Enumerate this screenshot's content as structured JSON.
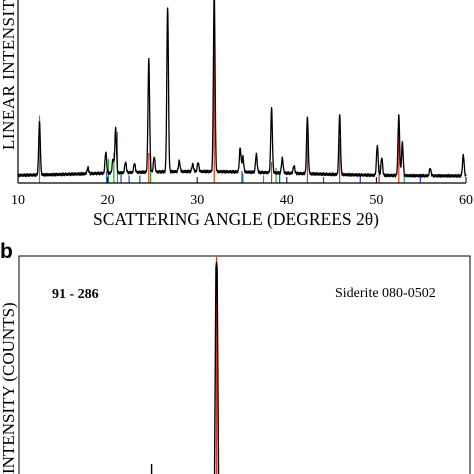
{
  "chart_data": [
    {
      "type": "line",
      "panel_label": "",
      "xlabel": "SCATTERING ANGLE (DEGREES 2θ)",
      "ylabel": "LINEAR INTENSITY",
      "xlim": [
        10,
        60
      ],
      "x_ticks": [
        10,
        20,
        30,
        40,
        50,
        60
      ],
      "x_tick_labels": [
        "10",
        "20",
        "30",
        "40",
        "50",
        "60"
      ],
      "grid": false,
      "series": [
        {
          "role": "measured-pattern",
          "color": "#000000",
          "peaks": [
            {
              "x": 12.4,
              "h": 0.35
            },
            {
              "x": 17.8,
              "h": 0.04
            },
            {
              "x": 19.8,
              "h": 0.14
            },
            {
              "x": 20.6,
              "h": 0.09
            },
            {
              "x": 20.9,
              "h": 0.3
            },
            {
              "x": 22.0,
              "h": 0.07
            },
            {
              "x": 23.0,
              "h": 0.06
            },
            {
              "x": 24.6,
              "h": 0.75
            },
            {
              "x": 25.2,
              "h": 0.1
            },
            {
              "x": 26.7,
              "h": 1.1
            },
            {
              "x": 28.0,
              "h": 0.07
            },
            {
              "x": 29.5,
              "h": 0.05
            },
            {
              "x": 30.1,
              "h": 0.06
            },
            {
              "x": 31.9,
              "h": 1.2
            },
            {
              "x": 34.8,
              "h": 0.16
            },
            {
              "x": 35.1,
              "h": 0.1
            },
            {
              "x": 36.6,
              "h": 0.12
            },
            {
              "x": 38.3,
              "h": 0.43
            },
            {
              "x": 39.5,
              "h": 0.1
            },
            {
              "x": 40.8,
              "h": 0.05
            },
            {
              "x": 42.3,
              "h": 0.38
            },
            {
              "x": 45.9,
              "h": 0.4
            },
            {
              "x": 50.1,
              "h": 0.2
            },
            {
              "x": 50.6,
              "h": 0.12
            },
            {
              "x": 52.5,
              "h": 0.4
            },
            {
              "x": 52.9,
              "h": 0.22
            },
            {
              "x": 56.0,
              "h": 0.05
            },
            {
              "x": 59.7,
              "h": 0.14
            }
          ]
        }
      ],
      "reference_lines": [
        {
          "color": "#22aa33",
          "x": [
            12.4,
            20.1,
            20.7,
            21.1,
            24.8,
            35.1,
            37.4,
            38.8,
            50.3,
            53.1
          ],
          "h": [
            0.45,
            0.16,
            0.2,
            0.34,
            0.18,
            0.06,
            0.05,
            0.1,
            0.12,
            0.06
          ]
        },
        {
          "color": "#2244cc",
          "x": [
            19.9,
            21.5,
            22.4,
            23.6,
            35.0,
            39.2,
            44.1,
            48.2,
            54.9
          ],
          "h": [
            0.08,
            0.06,
            0.05,
            0.05,
            0.08,
            0.06,
            0.04,
            0.04,
            0.04
          ]
        },
        {
          "color": "#dd3322",
          "x": [
            24.6,
            31.9,
            38.3,
            42.3,
            45.9,
            50.3,
            52.5
          ],
          "h": [
            0.2,
            1.3,
            0.14,
            0.44,
            0.3,
            0.12,
            0.46
          ]
        }
      ]
    },
    {
      "type": "line",
      "panel_label": "b",
      "ylabel": "INTENSITY (COUNTS)",
      "annotation_left": "91 - 286",
      "annotation_right": "Siderite 080-0502",
      "grid": false,
      "series": [
        {
          "role": "measured-pattern",
          "color": "#000000",
          "peaks": [
            {
              "x": 31.9,
              "h": 1.0
            },
            {
              "x": 24.7,
              "h": 0.03
            }
          ]
        }
      ],
      "reference_lines": [
        {
          "color": "#dd3322",
          "x": [
            31.9
          ],
          "h": [
            1.0
          ]
        }
      ]
    }
  ]
}
